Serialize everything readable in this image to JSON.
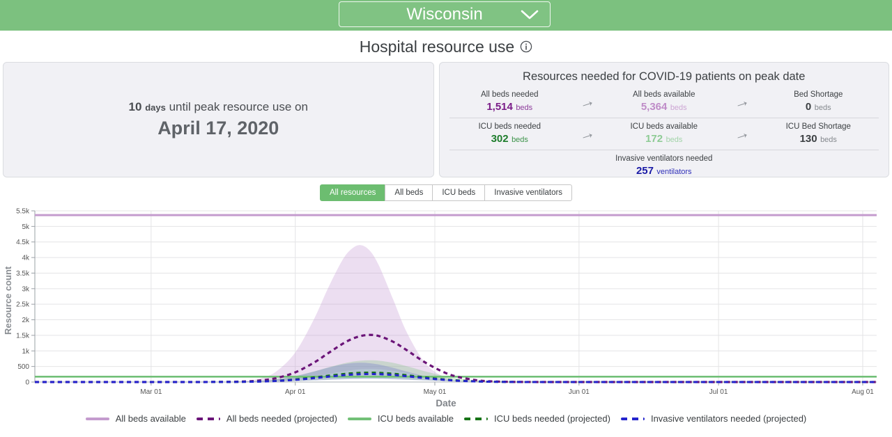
{
  "header": {
    "state": "Wisconsin"
  },
  "title": {
    "text": "Hospital resource use"
  },
  "peak_panel": {
    "days_value": "10",
    "days_unit": "days",
    "until_text": "until peak resource use on",
    "peak_date": "April 17, 2020"
  },
  "icons": {
    "arrow": "→"
  },
  "resources_panel": {
    "heading": "Resources needed for COVID-19 patients on peak date",
    "rows": [
      {
        "cells": [
          {
            "label": "All beds needed",
            "value": "1,514",
            "unit": "beds",
            "value_color": "#7a1d88",
            "unit_color": "#8d3c9b"
          },
          {
            "label": "All beds available",
            "value": "5,364",
            "unit": "beds",
            "value_color": "#bf8cc8",
            "unit_color": "#cda6d4"
          },
          {
            "label": "Bed Shortage",
            "value": "0",
            "unit": "beds",
            "value_color": "#3c4043",
            "unit_color": "#85898e"
          }
        ]
      },
      {
        "cells": [
          {
            "label": "ICU beds needed",
            "value": "302",
            "unit": "beds",
            "value_color": "#1e7d2c",
            "unit_color": "#3d934a"
          },
          {
            "label": "ICU beds available",
            "value": "172",
            "unit": "beds",
            "value_color": "#8ecb95",
            "unit_color": "#a3d4a9"
          },
          {
            "label": "ICU Bed Shortage",
            "value": "130",
            "unit": "beds",
            "value_color": "#3c4043",
            "unit_color": "#85898e"
          }
        ]
      },
      {
        "cells": [
          {
            "label": "Invasive ventilators needed",
            "value": "257",
            "unit": "ventilators",
            "value_color": "#1a1aa6",
            "unit_color": "#2e2eb8"
          }
        ]
      }
    ]
  },
  "tabs": [
    {
      "label": "All resources",
      "selected": true
    },
    {
      "label": "All beds",
      "selected": false
    },
    {
      "label": "ICU beds",
      "selected": false
    },
    {
      "label": "Invasive ventilators",
      "selected": false
    }
  ],
  "chart_data": {
    "type": "line",
    "xlabel": "Date",
    "ylabel": "Resource count",
    "ylim": [
      0,
      5500
    ],
    "x_max_day": 181,
    "x_days": [
      0,
      14,
      28,
      35,
      42,
      46,
      49,
      52,
      56,
      60,
      63,
      66,
      68,
      70,
      72,
      74,
      77,
      80,
      84,
      88,
      91,
      95,
      98,
      102,
      105,
      112,
      119,
      126,
      140,
      154,
      168,
      181
    ],
    "x_ticks": [
      {
        "day": 25,
        "label": "Mar 01"
      },
      {
        "day": 56,
        "label": "Apr 01"
      },
      {
        "day": 86,
        "label": "May 01"
      },
      {
        "day": 117,
        "label": "Jun 01"
      },
      {
        "day": 147,
        "label": "Jul 01"
      },
      {
        "day": 178,
        "label": "Aug 01"
      }
    ],
    "y_ticks": [
      {
        "v": 0,
        "label": "0"
      },
      {
        "v": 500,
        "label": "500"
      },
      {
        "v": 1000,
        "label": "1k"
      },
      {
        "v": 1500,
        "label": "1.5k"
      },
      {
        "v": 2000,
        "label": "2k"
      },
      {
        "v": 2500,
        "label": "2.5k"
      },
      {
        "v": 3000,
        "label": "3k"
      },
      {
        "v": 3500,
        "label": "3.5k"
      },
      {
        "v": 4000,
        "label": "4k"
      },
      {
        "v": 4500,
        "label": "4.5k"
      },
      {
        "v": 5000,
        "label": "5k"
      },
      {
        "v": 5500,
        "label": "5.5k"
      }
    ],
    "series": [
      {
        "name": "All beds available",
        "color": "#c49bce",
        "dash": false,
        "width": 3,
        "constant": 5364
      },
      {
        "name": "All beds needed (projected)",
        "color": "#6b1478",
        "dash": true,
        "width": 3.2,
        "values": [
          0,
          0,
          0,
          0,
          6,
          23,
          58,
          128,
          312,
          622,
          919,
          1213,
          1372,
          1477,
          1514,
          1477,
          1297,
          1020,
          622,
          312,
          163,
          58,
          23,
          6,
          2,
          0,
          0,
          0,
          0,
          0,
          0,
          0
        ]
      },
      {
        "name": "ICU beds available",
        "color": "#72c077",
        "dash": false,
        "width": 2.6,
        "constant": 172
      },
      {
        "name": "ICU beds needed (projected)",
        "color": "#177317",
        "dash": true,
        "width": 3,
        "values": [
          0,
          0,
          0,
          1,
          3,
          10,
          21,
          41,
          84,
          147,
          201,
          252,
          279,
          296,
          302,
          296,
          267,
          219,
          147,
          84,
          50,
          21,
          10,
          3,
          1,
          0,
          0,
          0,
          0,
          0,
          0,
          0
        ]
      },
      {
        "name": "Invasive ventilators needed (projected)",
        "color": "#2424cd",
        "dash": true,
        "width": 3,
        "values": [
          0,
          0,
          0,
          1,
          3,
          9,
          18,
          35,
          71,
          125,
          171,
          214,
          237,
          252,
          257,
          252,
          227,
          186,
          125,
          71,
          42,
          18,
          9,
          3,
          1,
          0,
          0,
          0,
          0,
          0,
          0,
          0
        ]
      }
    ],
    "bands": [
      {
        "for": "All beds needed (projected)",
        "fill": "rgba(197,156,211,0.33)",
        "upper": [
          0,
          0,
          0,
          0,
          10,
          49,
          140,
          350,
          951,
          2015,
          3001,
          3883,
          4265,
          4400,
          4224,
          3737,
          2669,
          1587,
          595,
          162,
          49,
          7,
          2,
          0,
          0,
          0,
          0,
          0,
          0,
          0,
          0,
          0
        ],
        "lower": [
          0,
          0,
          0,
          0,
          2,
          6,
          16,
          36,
          86,
          172,
          255,
          336,
          380,
          410,
          420,
          410,
          360,
          283,
          172,
          86,
          45,
          16,
          6,
          2,
          0,
          0,
          0,
          0,
          0,
          0,
          0,
          0
        ]
      },
      {
        "for": "ICU beds needed (projected)",
        "fill": "rgba(130,195,135,0.32)",
        "upper": [
          0,
          0,
          0,
          2,
          7,
          23,
          49,
          95,
          195,
          341,
          467,
          584,
          646,
          686,
          700,
          686,
          618,
          508,
          341,
          195,
          115,
          49,
          23,
          7,
          2,
          0,
          0,
          0,
          0,
          0,
          0,
          0
        ],
        "lower": [
          0,
          0,
          0,
          0,
          1,
          4,
          8,
          16,
          33,
          58,
          80,
          100,
          111,
          118,
          120,
          118,
          106,
          87,
          58,
          33,
          20,
          8,
          4,
          1,
          0,
          0,
          0,
          0,
          0,
          0,
          0,
          0
        ]
      },
      {
        "for": "Invasive ventilators needed (projected)",
        "fill": "rgba(118,126,203,0.35)",
        "upper": [
          0,
          0,
          0,
          0,
          5,
          17,
          41,
          84,
          185,
          335,
          458,
          562,
          605,
          620,
          605,
          562,
          458,
          335,
          185,
          84,
          41,
          11,
          4,
          1,
          0,
          0,
          0,
          0,
          0,
          0,
          0,
          0
        ],
        "lower": [
          0,
          0,
          0,
          0,
          1,
          3,
          7,
          14,
          28,
          49,
          67,
          83,
          92,
          98,
          100,
          98,
          88,
          72,
          49,
          28,
          16,
          7,
          3,
          1,
          0,
          0,
          0,
          0,
          0,
          0,
          0,
          0
        ]
      }
    ],
    "grid": true,
    "legend_position": "bottom"
  }
}
